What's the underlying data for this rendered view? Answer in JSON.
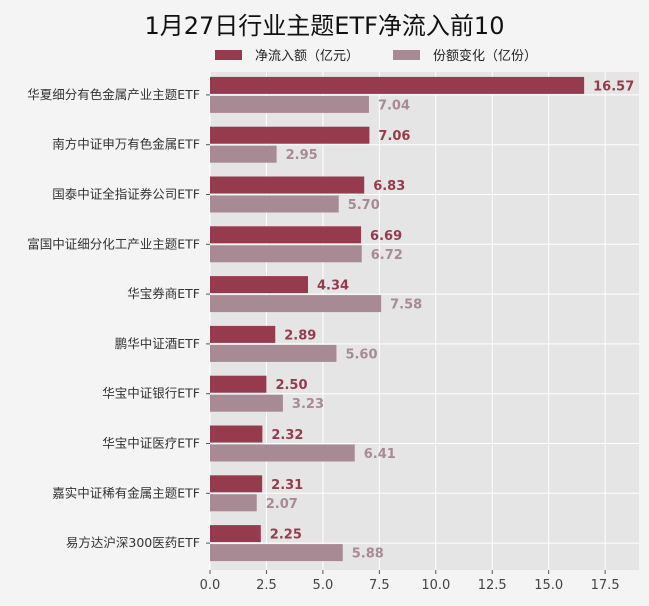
{
  "chart_data": {
    "type": "bar",
    "orientation": "horizontal",
    "title": "1月27日行业主题ETF净流入前10",
    "categories": [
      "华夏细分有色金属产业主题ETF",
      "南方中证申万有色金属ETF",
      "国泰中证全指证券公司ETF",
      "富国中证细分化工产业主题ETF",
      "华宝券商ETF",
      "鹏华中证酒ETF",
      "华宝中证银行ETF",
      "华宝中证医疗ETF",
      "嘉实中证稀有金属主题ETF",
      "易方达沪深300医药ETF"
    ],
    "series": [
      {
        "name": "净流入额（亿元）",
        "color": "#963b4d",
        "values": [
          16.57,
          7.06,
          6.83,
          6.69,
          4.34,
          2.89,
          2.5,
          2.32,
          2.31,
          2.25
        ]
      },
      {
        "name": "份额变化（亿份）",
        "color": "#a88a94",
        "values": [
          7.04,
          2.95,
          5.7,
          6.72,
          7.58,
          5.6,
          3.23,
          6.41,
          2.07,
          5.88
        ]
      }
    ],
    "xticks": [
      "0.0",
      "2.5",
      "5.0",
      "7.5",
      "10.0",
      "12.5",
      "15.0",
      "17.5"
    ],
    "xlim": [
      0,
      19
    ],
    "grid": true,
    "legend": "top",
    "plot_background": "#e5e5e5"
  }
}
